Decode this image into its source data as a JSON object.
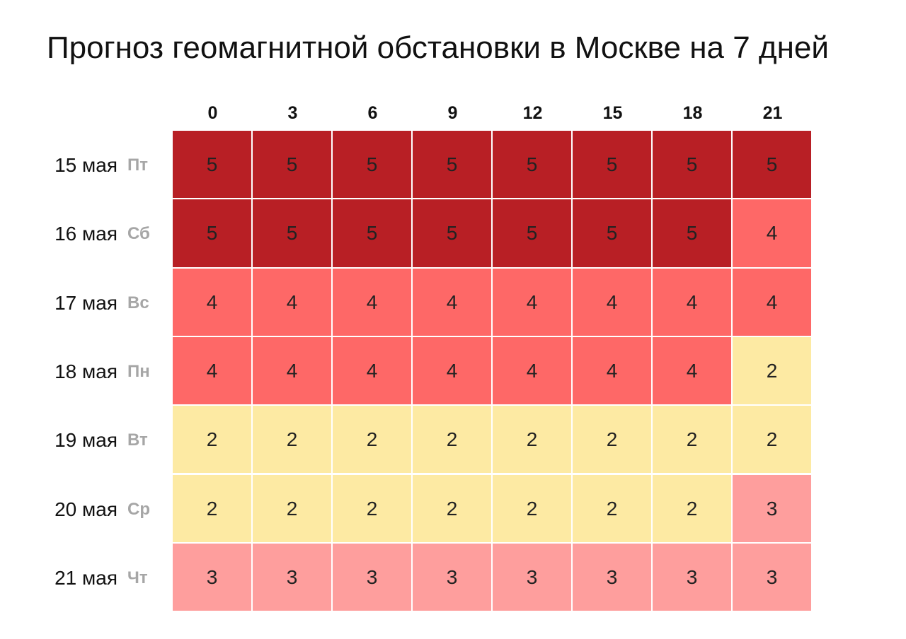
{
  "title": "Прогноз геомагнитной обстановки в Москве на 7 дней",
  "colors": {
    "5": "#b81f25",
    "4": "#fe6867",
    "3": "#fe9e9d",
    "2": "#fdeaa3"
  },
  "chart_data": {
    "type": "heatmap",
    "title": "Прогноз геомагнитной обстановки в Москве на 7 дней",
    "x": [
      "0",
      "3",
      "6",
      "9",
      "12",
      "15",
      "18",
      "21"
    ],
    "rows": [
      {
        "date": "15 мая",
        "dow": "Пт",
        "values": [
          5,
          5,
          5,
          5,
          5,
          5,
          5,
          5
        ]
      },
      {
        "date": "16 мая",
        "dow": "Сб",
        "values": [
          5,
          5,
          5,
          5,
          5,
          5,
          5,
          4
        ]
      },
      {
        "date": "17 мая",
        "dow": "Вс",
        "values": [
          4,
          4,
          4,
          4,
          4,
          4,
          4,
          4
        ]
      },
      {
        "date": "18 мая",
        "dow": "Пн",
        "values": [
          4,
          4,
          4,
          4,
          4,
          4,
          4,
          2
        ]
      },
      {
        "date": "19 мая",
        "dow": "Вт",
        "values": [
          2,
          2,
          2,
          2,
          2,
          2,
          2,
          2
        ]
      },
      {
        "date": "20 мая",
        "dow": "Ср",
        "values": [
          2,
          2,
          2,
          2,
          2,
          2,
          2,
          3
        ]
      },
      {
        "date": "21 мая",
        "dow": "Чт",
        "values": [
          3,
          3,
          3,
          3,
          3,
          3,
          3,
          3
        ]
      }
    ]
  }
}
